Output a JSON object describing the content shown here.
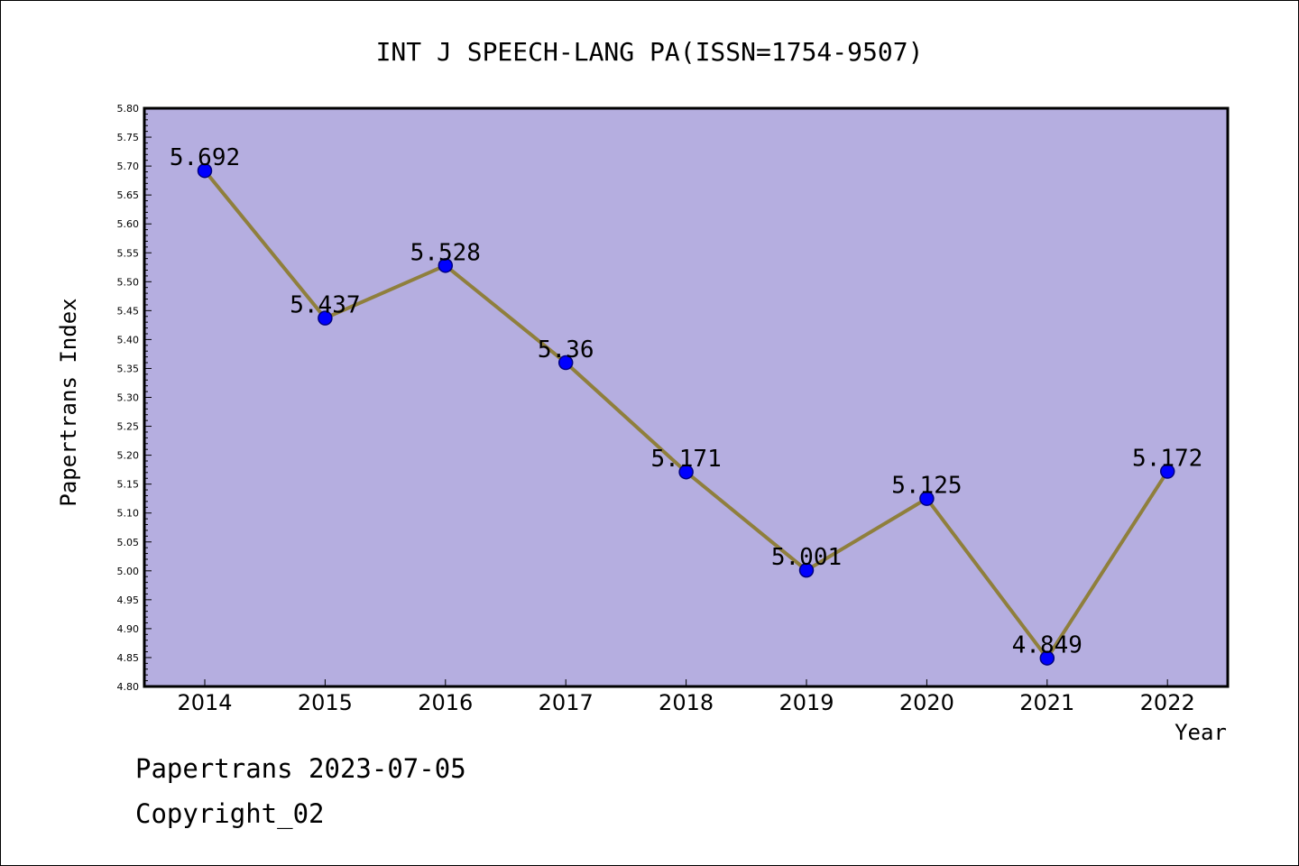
{
  "colors": {
    "plot_background": "#b5aee0",
    "line": "#8f7f3c",
    "marker_fill": "#0000ff",
    "marker_stroke": "#000080",
    "axis": "#000000"
  },
  "footer": {
    "source_line": "Papertrans 2023-07-05",
    "copyright_line": "Copyright_02"
  },
  "chart_data": {
    "type": "line",
    "title": "INT J SPEECH-LANG PA(ISSN=1754-9507)",
    "xlabel": "Year",
    "ylabel": "Papertrans Index",
    "x": [
      "2014",
      "2015",
      "2016",
      "2017",
      "2018",
      "2019",
      "2020",
      "2021",
      "2022"
    ],
    "values": [
      5.692,
      5.437,
      5.528,
      5.36,
      5.171,
      5.001,
      5.125,
      4.849,
      5.172
    ],
    "data_labels": [
      "5.692",
      "5.437",
      "5.528",
      "5.36",
      "5.171",
      "5.001",
      "5.125",
      "4.849",
      "5.172"
    ],
    "ylim": [
      4.8,
      5.8
    ],
    "y_ticks": [
      "4.80",
      "4.85",
      "4.90",
      "4.95",
      "5.00",
      "5.05",
      "5.10",
      "5.15",
      "5.20",
      "5.25",
      "5.30",
      "5.35",
      "5.40",
      "5.45",
      "5.50",
      "5.55",
      "5.60",
      "5.65",
      "5.70",
      "5.75",
      "5.80"
    ],
    "grid": false,
    "legend": "none"
  }
}
